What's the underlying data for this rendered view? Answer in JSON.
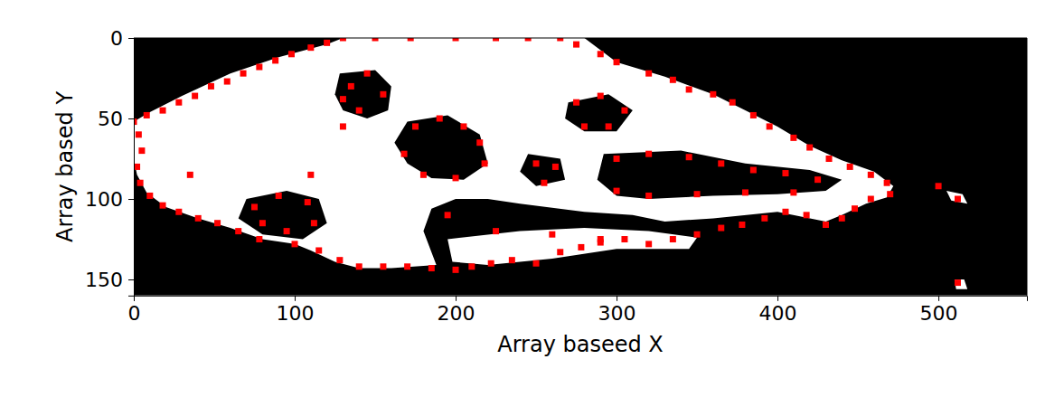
{
  "chart_data": {
    "type": "scatter",
    "xlabel": "Array baseed X",
    "ylabel": "Array based Y",
    "xlim": [
      0,
      555
    ],
    "ylim": [
      160,
      0
    ],
    "xticks": [
      0,
      100,
      200,
      300,
      400,
      500
    ],
    "yticks": [
      0,
      50,
      100,
      150
    ],
    "color": "#ff0000",
    "marker": "square",
    "x": [
      0,
      8,
      18,
      28,
      38,
      48,
      58,
      68,
      78,
      88,
      98,
      110,
      120,
      130,
      150,
      172,
      200,
      225,
      245,
      265,
      275,
      290,
      300,
      320,
      335,
      345,
      360,
      372,
      385,
      395,
      410,
      420,
      432,
      445,
      458,
      468,
      470,
      458,
      448,
      440,
      430,
      418,
      405,
      392,
      378,
      365,
      350,
      335,
      320,
      305,
      290,
      278,
      265,
      250,
      235,
      222,
      210,
      200,
      185,
      170,
      155,
      140,
      128,
      115,
      100,
      78,
      65,
      52,
      40,
      28,
      18,
      10,
      4,
      2,
      5,
      3,
      135,
      145,
      155,
      140,
      130,
      175,
      190,
      205,
      215,
      218,
      200,
      180,
      168,
      275,
      290,
      305,
      295,
      280,
      250,
      262,
      255,
      300,
      320,
      345,
      365,
      385,
      405,
      425,
      410,
      380,
      350,
      320,
      300,
      75,
      90,
      108,
      112,
      95,
      80,
      35,
      110,
      130,
      225,
      260,
      290,
      195,
      500,
      512,
      512
    ],
    "y": [
      52,
      48,
      45,
      40,
      36,
      30,
      27,
      22,
      18,
      14,
      10,
      6,
      3,
      0,
      0,
      0,
      0,
      0,
      0,
      0,
      4,
      10,
      15,
      22,
      26,
      32,
      35,
      40,
      48,
      55,
      62,
      68,
      75,
      80,
      85,
      90,
      97,
      100,
      106,
      112,
      116,
      110,
      108,
      112,
      116,
      118,
      122,
      125,
      128,
      125,
      127,
      130,
      133,
      140,
      138,
      140,
      142,
      144,
      143,
      142,
      142,
      142,
      138,
      132,
      128,
      125,
      120,
      115,
      112,
      108,
      104,
      98,
      90,
      80,
      70,
      60,
      30,
      22,
      35,
      45,
      38,
      55,
      50,
      55,
      65,
      78,
      87,
      85,
      72,
      40,
      36,
      45,
      55,
      55,
      78,
      80,
      90,
      75,
      72,
      74,
      78,
      82,
      84,
      88,
      96,
      96,
      97,
      98,
      95,
      105,
      98,
      102,
      115,
      120,
      115,
      85,
      85,
      55,
      120,
      122,
      125,
      110,
      92,
      100,
      152
    ],
    "image": {
      "colors": [
        "#000000",
        "#ffffff"
      ],
      "regions": [
        {
          "value": 1,
          "x": [
            0,
            10,
            30,
            60,
            90,
            120,
            130,
            280,
            300,
            330,
            360,
            380,
            400,
            420,
            440,
            460,
            472,
            468,
            455,
            440,
            430,
            400,
            360,
            330,
            310,
            280,
            240,
            220,
            200,
            185,
            180,
            188,
            160,
            140,
            125,
            110,
            100,
            80,
            60,
            40,
            20,
            8,
            2,
            0
          ],
          "y": [
            52,
            46,
            36,
            22,
            12,
            4,
            0,
            0,
            15,
            24,
            35,
            45,
            55,
            67,
            76,
            83,
            92,
            99,
            103,
            110,
            114,
            108,
            112,
            114,
            110,
            108,
            103,
            100,
            100,
            106,
            120,
            141,
            143,
            143,
            139,
            132,
            128,
            125,
            118,
            112,
            105,
            96,
            85,
            75
          ]
        },
        {
          "value": 1,
          "x": [
            195,
            240,
            280,
            320,
            350,
            345,
            300,
            260,
            220,
            198
          ],
          "y": [
            125,
            120,
            118,
            120,
            124,
            131,
            131,
            137,
            141,
            139
          ]
        },
        {
          "value": 1,
          "x": [
            505,
            515,
            518,
            508
          ],
          "y": [
            95,
            97,
            103,
            101
          ]
        },
        {
          "value": 1,
          "x": [
            510,
            516,
            518,
            511
          ],
          "y": [
            150,
            150,
            156,
            156
          ]
        },
        {
          "value": 0,
          "x": [
            128,
            150,
            160,
            158,
            145,
            130,
            125
          ],
          "y": [
            22,
            20,
            30,
            45,
            50,
            45,
            35
          ]
        },
        {
          "value": 0,
          "x": [
            170,
            195,
            215,
            220,
            205,
            185,
            170,
            162
          ],
          "y": [
            52,
            48,
            60,
            78,
            88,
            87,
            78,
            65
          ]
        },
        {
          "value": 0,
          "x": [
            270,
            295,
            310,
            300,
            280,
            268
          ],
          "y": [
            40,
            35,
            45,
            58,
            58,
            50
          ]
        },
        {
          "value": 0,
          "x": [
            245,
            265,
            268,
            250,
            240
          ],
          "y": [
            72,
            75,
            88,
            92,
            83
          ]
        },
        {
          "value": 0,
          "x": [
            292,
            340,
            380,
            420,
            440,
            430,
            400,
            360,
            320,
            300,
            288
          ],
          "y": [
            72,
            70,
            78,
            82,
            88,
            95,
            97,
            98,
            100,
            98,
            88
          ]
        },
        {
          "value": 0,
          "x": [
            70,
            95,
            115,
            120,
            105,
            80,
            65
          ],
          "y": [
            100,
            95,
            100,
            115,
            125,
            122,
            112
          ]
        }
      ]
    }
  }
}
